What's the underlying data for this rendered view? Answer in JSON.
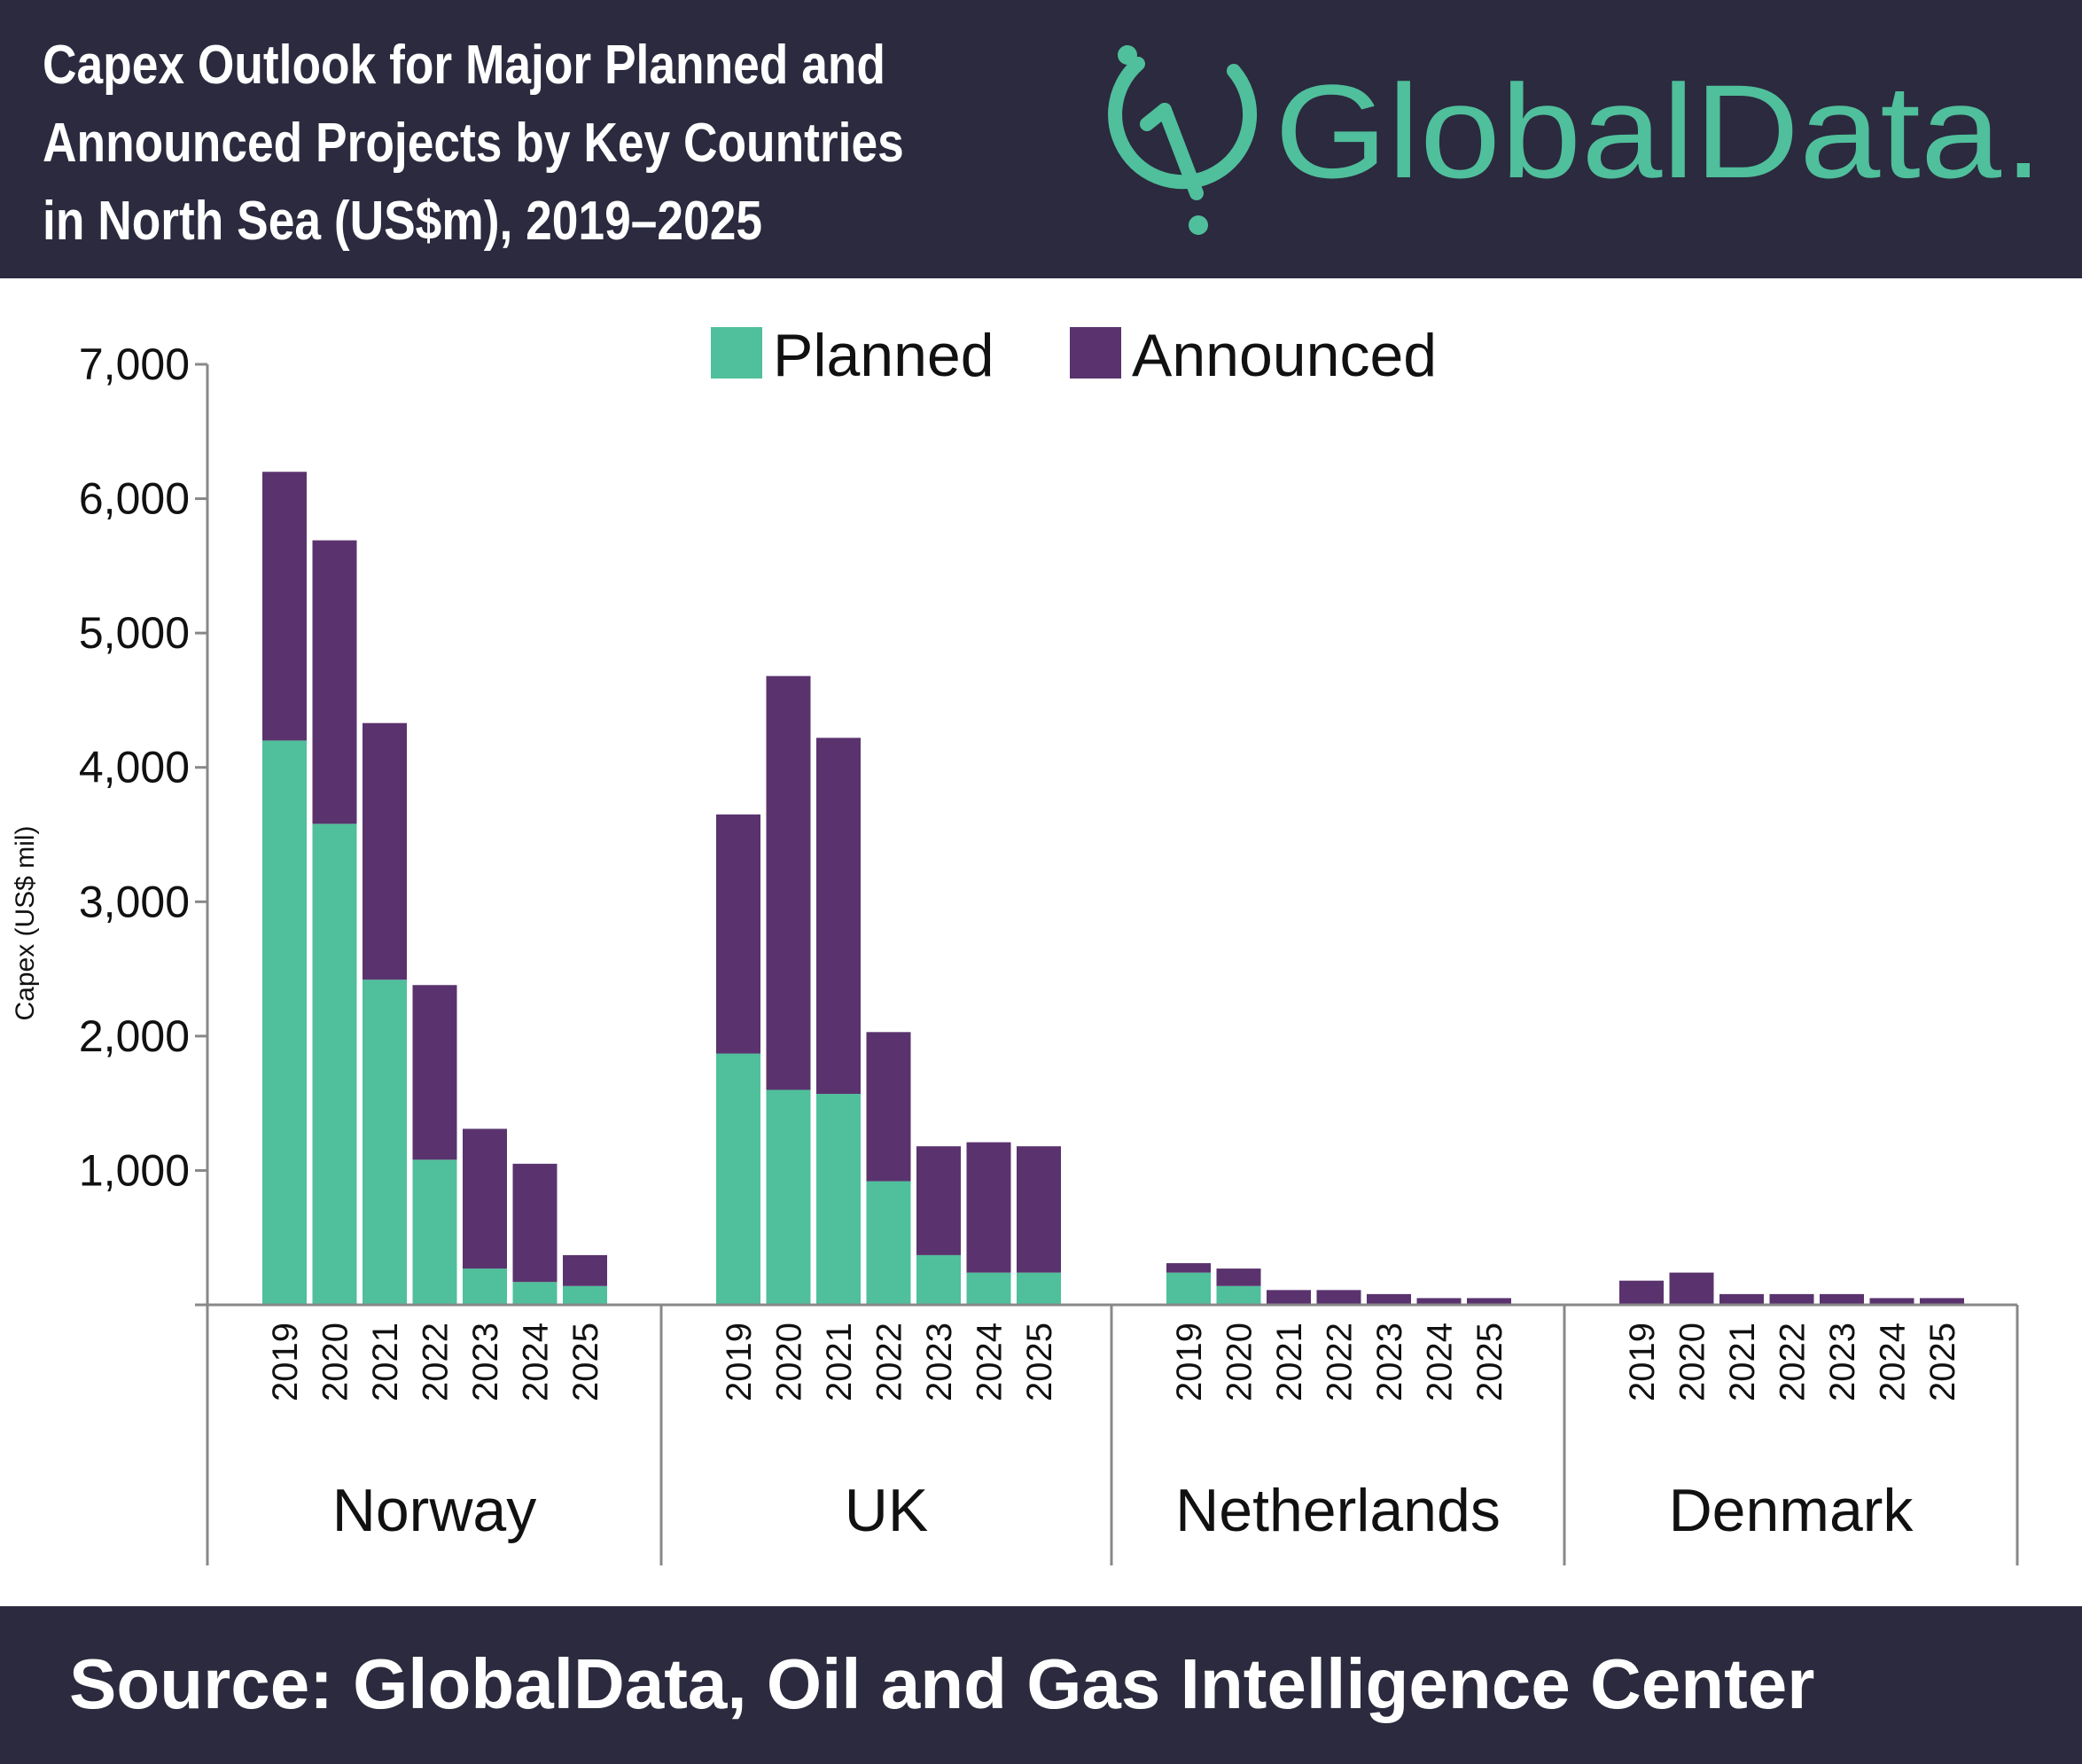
{
  "header": {
    "title_lines": [
      "Capex Outlook for Major Planned and",
      "Announced Projects by Key Countries",
      "in North Sea (US$m), 2019–2025"
    ],
    "logo_text": "GlobalData",
    "logo_dot": "."
  },
  "colors": {
    "header_bg": "#2b2a3e",
    "planned": "#50bf9b",
    "announced": "#5a336e",
    "logo": "#50bf9b"
  },
  "footer": {
    "source": "Source:  GlobalData, Oil and Gas Intelligence Center"
  },
  "chart_data": {
    "type": "bar",
    "stacked": true,
    "ylabel": "Capex (US$ mil)",
    "ylim": [
      0,
      7000
    ],
    "yticks": [
      "1,000",
      "2,000",
      "3,000",
      "4,000",
      "5,000",
      "6,000",
      "7,000"
    ],
    "ytick_values": [
      1000,
      2000,
      3000,
      4000,
      5000,
      6000,
      7000
    ],
    "legend": {
      "placement": "top-center",
      "entries": [
        "Planned",
        "Announced"
      ]
    },
    "grid": false,
    "groups": [
      {
        "name": "Norway",
        "categories": [
          "2019",
          "2020",
          "2021",
          "2022",
          "2023",
          "2024",
          "2025"
        ],
        "series": [
          {
            "name": "Planned",
            "values": [
              4200,
              3580,
              2420,
              1080,
              270,
              170,
              140
            ]
          },
          {
            "name": "Announced",
            "values": [
              2000,
              2110,
              1910,
              1300,
              1040,
              880,
              230
            ]
          }
        ]
      },
      {
        "name": "UK",
        "categories": [
          "2019",
          "2020",
          "2021",
          "2022",
          "2023",
          "2024",
          "2025"
        ],
        "series": [
          {
            "name": "Planned",
            "values": [
              1870,
              1600,
              1570,
              920,
              370,
              240,
              240
            ]
          },
          {
            "name": "Announced",
            "values": [
              1780,
              3080,
              2650,
              1110,
              810,
              970,
              940
            ]
          }
        ]
      },
      {
        "name": "Netherlands",
        "categories": [
          "2019",
          "2020",
          "2021",
          "2022",
          "2023",
          "2024",
          "2025"
        ],
        "series": [
          {
            "name": "Planned",
            "values": [
              240,
              140,
              0,
              0,
              0,
              0,
              0
            ]
          },
          {
            "name": "Announced",
            "values": [
              70,
              130,
              110,
              110,
              80,
              50,
              50
            ]
          }
        ]
      },
      {
        "name": "Denmark",
        "categories": [
          "2019",
          "2020",
          "2021",
          "2022",
          "2023",
          "2024",
          "2025"
        ],
        "series": [
          {
            "name": "Planned",
            "values": [
              0,
              0,
              0,
              0,
              0,
              0,
              0
            ]
          },
          {
            "name": "Announced",
            "values": [
              180,
              240,
              80,
              80,
              80,
              50,
              50
            ]
          }
        ]
      }
    ]
  }
}
